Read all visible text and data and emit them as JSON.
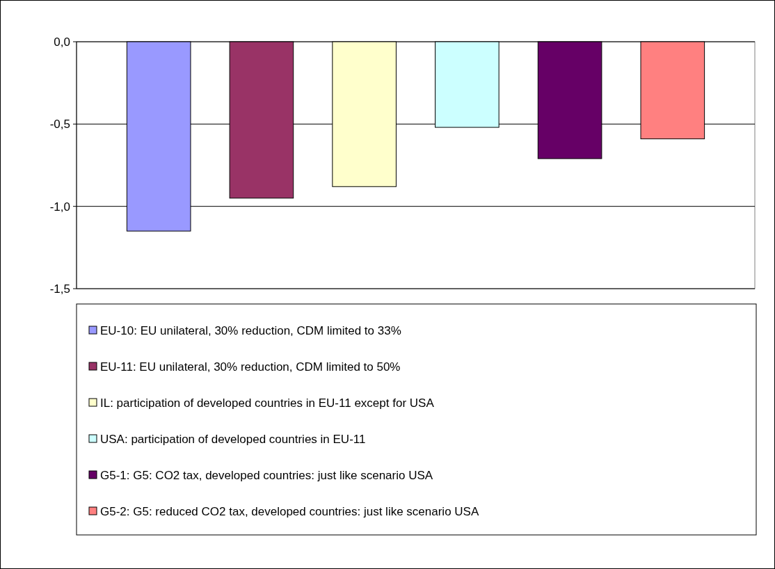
{
  "chart_data": {
    "type": "bar",
    "categories": [
      null
    ],
    "series": [
      {
        "name": "EU-10: EU unilateral, 30% reduction, CDM limited to 33%",
        "color": "#9999ff",
        "values": [
          -1.15
        ]
      },
      {
        "name": "EU-11: EU unilateral, 30% reduction, CDM limited to 50%",
        "color": "#993366",
        "values": [
          -0.95
        ]
      },
      {
        "name": "IL: participation of developed countries in EU-11 except for USA",
        "color": "#ffffcc",
        "values": [
          -0.88
        ]
      },
      {
        "name": "USA: participation of developed countries in EU-11",
        "color": "#ccffff",
        "values": [
          -0.52
        ]
      },
      {
        "name": "G5-1: G5: CO2 tax, developed countries: just like scenario USA",
        "color": "#660066",
        "values": [
          -0.71
        ]
      },
      {
        "name": "G5-2: G5: reduced CO2 tax, developed countries: just like scenario USA",
        "color": "#ff8080",
        "values": [
          -0.59
        ]
      }
    ],
    "ylim": [
      -1.5,
      0
    ],
    "yticks": [
      {
        "value": 0,
        "label": "0,0"
      },
      {
        "value": -0.5,
        "label": "-0,5"
      },
      {
        "value": -1,
        "label": "-1,0"
      },
      {
        "value": -1.5,
        "label": "-1,5"
      }
    ],
    "grid": "y",
    "legend": "bottom"
  }
}
